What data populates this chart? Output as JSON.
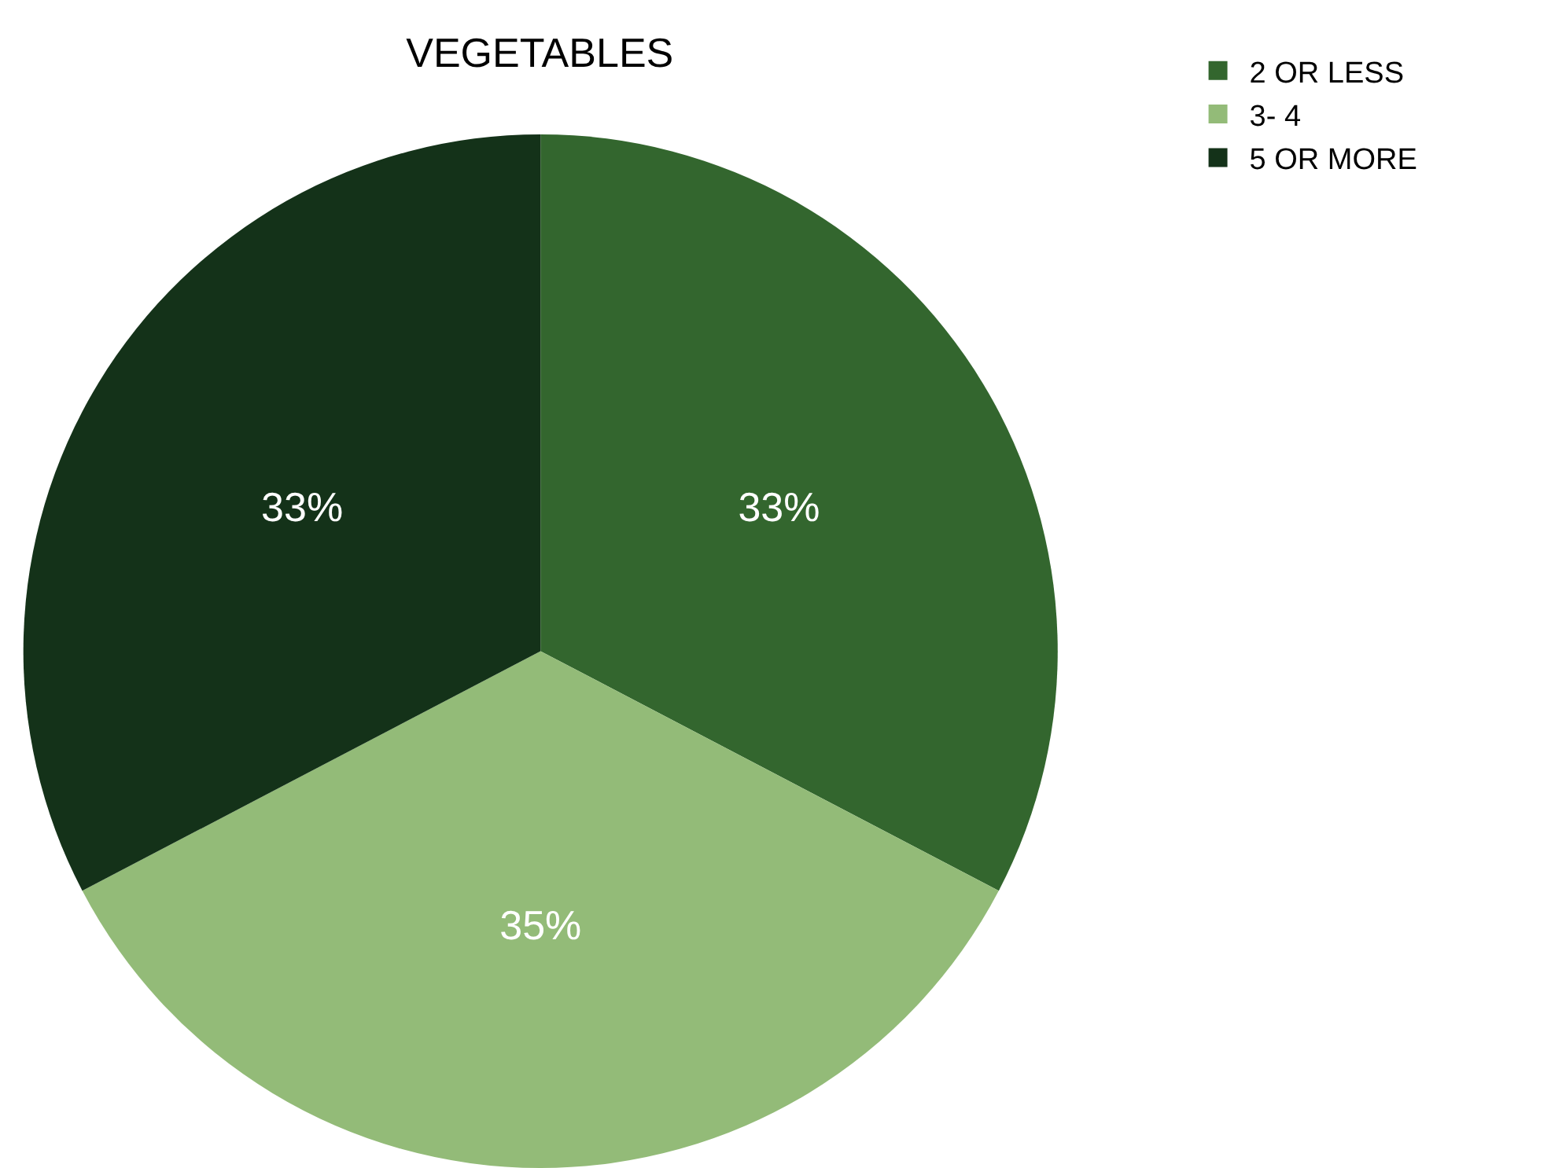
{
  "chart_data": {
    "type": "pie",
    "title": "VEGETABLES",
    "categories": [
      "2 OR LESS",
      "3- 4",
      "5 OR MORE"
    ],
    "values": [
      33,
      35,
      33
    ],
    "value_labels": [
      "33%",
      "35%",
      "33%"
    ],
    "colors": [
      "#33662e",
      "#93bb78",
      "#143219"
    ],
    "legend": "top right"
  }
}
